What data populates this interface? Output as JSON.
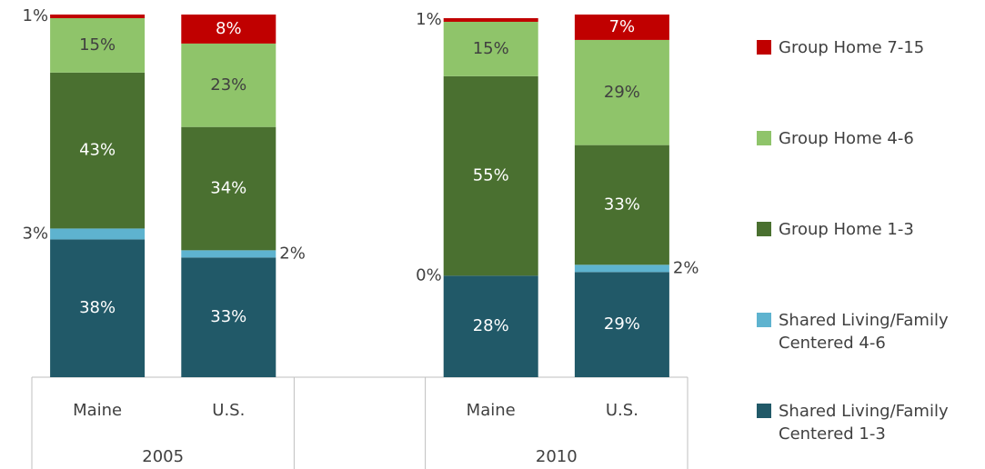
{
  "chart_data": {
    "type": "stacked_bar",
    "categories": [
      "Maine",
      "U.S.",
      null,
      "Maine",
      "U.S."
    ],
    "groups": [
      "2005",
      "2010"
    ],
    "ylim": [
      0,
      100
    ],
    "series": [
      {
        "name": "Shared Living/Family Centered 1-3",
        "color": "#215968",
        "label_color": "#ffffff",
        "values": [
          38,
          33,
          null,
          28,
          29
        ],
        "value_labels": [
          "38%",
          "33%",
          null,
          "28%",
          "29%"
        ]
      },
      {
        "name": "Shared Living/Family Centered 4-6",
        "color": "#5eb3cf",
        "label_color": "#404040",
        "values": [
          3,
          2,
          null,
          0,
          2
        ],
        "value_labels": [
          "3%",
          "2%",
          null,
          "0%",
          "2%"
        ]
      },
      {
        "name": "Group Home 1-3",
        "color": "#4a7030",
        "label_color": "#ffffff",
        "values": [
          43,
          34,
          null,
          55,
          33
        ],
        "value_labels": [
          "43%",
          "34%",
          null,
          "55%",
          "33%"
        ]
      },
      {
        "name": "Group Home 4-6",
        "color": "#8fc46a",
        "label_color": "#404040",
        "values": [
          15,
          23,
          null,
          15,
          29
        ],
        "value_labels": [
          "15%",
          "23%",
          null,
          "15%",
          "29%"
        ]
      },
      {
        "name": "Group Home 7-15",
        "color": "#c00000",
        "label_color": "#ffffff",
        "values": [
          1,
          8,
          null,
          1,
          7
        ],
        "value_labels": [
          "1%",
          "8%",
          null,
          "1%",
          "7%"
        ]
      }
    ]
  }
}
